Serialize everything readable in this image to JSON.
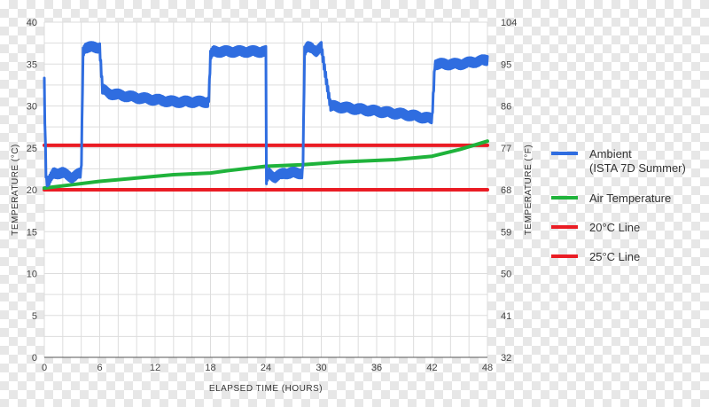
{
  "chart_data": {
    "type": "line",
    "xlabel": "ELAPSED TIME (HOURS)",
    "ylabel_left": "TEMPERATURE (°C)",
    "ylabel_right": "TEMPERATURE (°F)",
    "xlim": [
      0,
      48
    ],
    "ylim": [
      0,
      40
    ],
    "x_ticks": [
      0,
      6,
      12,
      18,
      24,
      30,
      36,
      42,
      48
    ],
    "y_ticks": [
      0,
      5,
      10,
      15,
      20,
      25,
      30,
      35,
      40
    ],
    "y_right_ticks": [
      32,
      41,
      50,
      59,
      68,
      77,
      86,
      95,
      104
    ],
    "grid": true,
    "legend_position": "right",
    "series": [
      {
        "name": "Ambient",
        "name_line2": "(ISTA 7D Summer)",
        "color": "#2f6de0",
        "noise": 0.6,
        "x": [
          0,
          0.05,
          0.2,
          0.5,
          1,
          2,
          3,
          4,
          4.2,
          4.4,
          5,
          5.5,
          6,
          6.3,
          7,
          10,
          14,
          17,
          17.8,
          18,
          18.3,
          20,
          24,
          24.05,
          24.3,
          25,
          26,
          27,
          28,
          28.2,
          28.5,
          29,
          29.5,
          30,
          31,
          35,
          39,
          41.8,
          42,
          42.3,
          45,
          48
        ],
        "y": [
          33,
          29,
          21,
          21,
          22,
          22,
          21.5,
          22,
          36.5,
          37,
          37,
          37,
          37,
          32,
          31.5,
          31,
          30.5,
          30.5,
          30.5,
          36,
          36.5,
          36.5,
          36.5,
          21,
          22,
          21.5,
          22,
          22,
          22,
          36.5,
          37,
          37,
          36.5,
          37,
          30,
          29.5,
          29,
          28.5,
          28.5,
          35,
          35,
          35.5
        ]
      },
      {
        "name": "Air Temperature",
        "color": "#1fb33b",
        "noise": 0,
        "x": [
          0,
          3,
          6,
          10,
          14,
          18,
          20,
          24,
          28,
          32,
          38,
          42,
          45,
          48
        ],
        "y": [
          20.2,
          20.6,
          21.0,
          21.4,
          21.8,
          22.0,
          22.3,
          22.8,
          23.0,
          23.3,
          23.6,
          24.0,
          24.8,
          25.8
        ]
      },
      {
        "name": "20°C Line",
        "color": "#ea1c24",
        "noise": 0,
        "x": [
          0,
          48
        ],
        "y": [
          20,
          20
        ]
      },
      {
        "name": "25°C Line",
        "color": "#ea1c24",
        "noise": 0,
        "x": [
          0,
          48
        ],
        "y": [
          25.3,
          25.3
        ]
      }
    ]
  }
}
